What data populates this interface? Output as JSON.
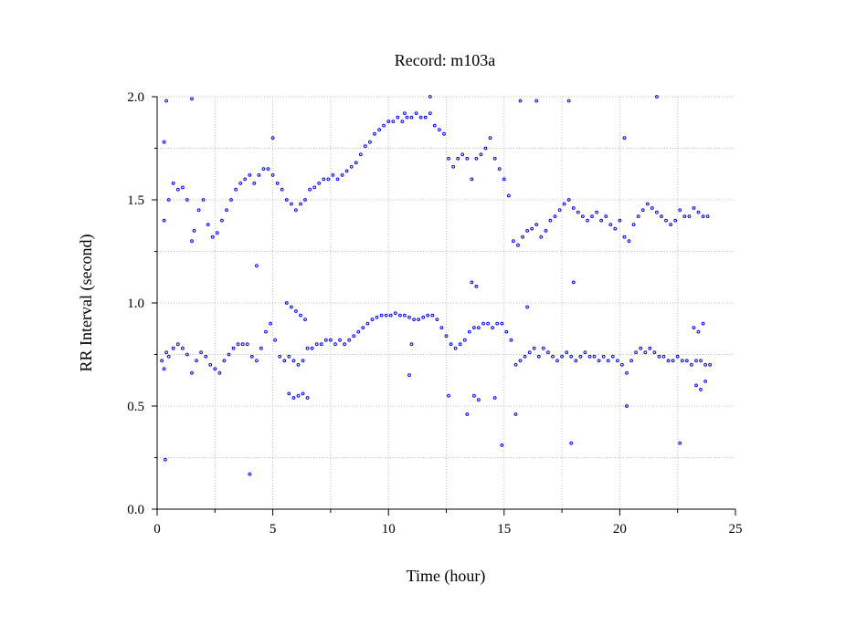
{
  "chart_data": {
    "type": "scatter",
    "title": "Record:  m103a",
    "xlabel": "Time (hour)",
    "ylabel": "RR Interval (second)",
    "xlim": [
      0,
      25
    ],
    "ylim": [
      0.0,
      2.0
    ],
    "xticks": [
      "0",
      "5",
      "10",
      "15",
      "20",
      "25"
    ],
    "yticks": [
      "0.0",
      "0.5",
      "1.0",
      "1.5",
      "2.0"
    ],
    "grid": true,
    "marker_color": "#0000ff",
    "marker": "open-circle",
    "series": [
      {
        "points": [
          [
            0.2,
            0.72
          ],
          [
            0.3,
            0.68
          ],
          [
            0.4,
            0.76
          ],
          [
            0.5,
            0.74
          ],
          [
            0.7,
            0.78
          ],
          [
            0.9,
            0.8
          ],
          [
            1.1,
            0.78
          ],
          [
            1.3,
            0.75
          ],
          [
            1.5,
            0.66
          ],
          [
            1.7,
            0.72
          ],
          [
            1.9,
            0.76
          ],
          [
            2.1,
            0.74
          ],
          [
            2.3,
            0.7
          ],
          [
            2.5,
            0.68
          ],
          [
            2.7,
            0.66
          ],
          [
            2.9,
            0.72
          ],
          [
            3.1,
            0.75
          ],
          [
            3.3,
            0.78
          ],
          [
            3.5,
            0.8
          ],
          [
            3.7,
            0.8
          ],
          [
            3.9,
            0.8
          ],
          [
            4.1,
            0.74
          ],
          [
            4.3,
            0.72
          ],
          [
            4.5,
            0.78
          ],
          [
            4.7,
            0.86
          ],
          [
            4.9,
            0.9
          ],
          [
            5.1,
            0.82
          ],
          [
            5.3,
            0.74
          ],
          [
            5.5,
            0.72
          ],
          [
            5.7,
            0.74
          ],
          [
            5.9,
            0.72
          ],
          [
            6.1,
            0.7
          ],
          [
            6.3,
            0.72
          ],
          [
            6.5,
            0.78
          ],
          [
            6.7,
            0.78
          ],
          [
            6.9,
            0.8
          ],
          [
            7.1,
            0.8
          ],
          [
            7.3,
            0.82
          ],
          [
            7.5,
            0.82
          ],
          [
            7.7,
            0.8
          ],
          [
            7.9,
            0.82
          ],
          [
            8.1,
            0.8
          ],
          [
            8.3,
            0.82
          ],
          [
            8.5,
            0.84
          ],
          [
            8.7,
            0.86
          ],
          [
            8.9,
            0.88
          ],
          [
            9.1,
            0.9
          ],
          [
            9.3,
            0.92
          ],
          [
            9.5,
            0.93
          ],
          [
            9.7,
            0.94
          ],
          [
            9.9,
            0.94
          ],
          [
            10.1,
            0.94
          ],
          [
            10.3,
            0.95
          ],
          [
            10.5,
            0.94
          ],
          [
            10.7,
            0.94
          ],
          [
            10.9,
            0.93
          ],
          [
            11.1,
            0.92
          ],
          [
            11.3,
            0.92
          ],
          [
            11.5,
            0.93
          ],
          [
            11.7,
            0.94
          ],
          [
            11.9,
            0.94
          ],
          [
            12.1,
            0.92
          ],
          [
            12.3,
            0.88
          ],
          [
            12.5,
            0.84
          ],
          [
            12.7,
            0.8
          ],
          [
            12.9,
            0.78
          ],
          [
            13.1,
            0.8
          ],
          [
            13.3,
            0.82
          ],
          [
            13.5,
            0.86
          ],
          [
            13.7,
            0.88
          ],
          [
            13.9,
            0.88
          ],
          [
            14.1,
            0.9
          ],
          [
            14.3,
            0.9
          ],
          [
            14.5,
            0.88
          ],
          [
            14.7,
            0.9
          ],
          [
            14.9,
            0.9
          ],
          [
            15.1,
            0.86
          ],
          [
            15.3,
            0.82
          ],
          [
            15.5,
            0.7
          ],
          [
            15.7,
            0.72
          ],
          [
            15.9,
            0.74
          ],
          [
            16.1,
            0.76
          ],
          [
            16.3,
            0.78
          ],
          [
            16.5,
            0.74
          ],
          [
            16.7,
            0.78
          ],
          [
            16.9,
            0.76
          ],
          [
            17.1,
            0.74
          ],
          [
            17.3,
            0.72
          ],
          [
            17.5,
            0.74
          ],
          [
            17.7,
            0.76
          ],
          [
            17.9,
            0.74
          ],
          [
            18.1,
            0.72
          ],
          [
            18.3,
            0.74
          ],
          [
            18.5,
            0.76
          ],
          [
            18.7,
            0.74
          ],
          [
            18.9,
            0.74
          ],
          [
            19.1,
            0.72
          ],
          [
            19.3,
            0.74
          ],
          [
            19.5,
            0.72
          ],
          [
            19.7,
            0.74
          ],
          [
            19.9,
            0.72
          ],
          [
            20.1,
            0.7
          ],
          [
            20.3,
            0.66
          ],
          [
            20.5,
            0.72
          ],
          [
            20.7,
            0.76
          ],
          [
            20.9,
            0.78
          ],
          [
            21.1,
            0.76
          ],
          [
            21.3,
            0.78
          ],
          [
            21.5,
            0.76
          ],
          [
            21.7,
            0.74
          ],
          [
            21.9,
            0.74
          ],
          [
            22.1,
            0.72
          ],
          [
            22.3,
            0.72
          ],
          [
            22.5,
            0.74
          ],
          [
            22.7,
            0.72
          ],
          [
            22.9,
            0.72
          ],
          [
            23.1,
            0.7
          ],
          [
            23.3,
            0.72
          ],
          [
            23.5,
            0.72
          ],
          [
            23.7,
            0.7
          ],
          [
            23.9,
            0.7
          ],
          [
            0.3,
            1.4
          ],
          [
            0.5,
            1.5
          ],
          [
            0.7,
            1.58
          ],
          [
            0.9,
            1.55
          ],
          [
            1.1,
            1.56
          ],
          [
            1.3,
            1.5
          ],
          [
            1.5,
            1.3
          ],
          [
            1.6,
            1.35
          ],
          [
            1.8,
            1.45
          ],
          [
            2.0,
            1.5
          ],
          [
            2.2,
            1.38
          ],
          [
            2.4,
            1.32
          ],
          [
            2.6,
            1.34
          ],
          [
            2.8,
            1.4
          ],
          [
            3.0,
            1.45
          ],
          [
            3.2,
            1.5
          ],
          [
            3.4,
            1.55
          ],
          [
            3.6,
            1.58
          ],
          [
            3.8,
            1.6
          ],
          [
            4.0,
            1.62
          ],
          [
            4.2,
            1.58
          ],
          [
            4.4,
            1.62
          ],
          [
            4.6,
            1.65
          ],
          [
            4.8,
            1.65
          ],
          [
            5.0,
            1.62
          ],
          [
            5.2,
            1.58
          ],
          [
            5.4,
            1.55
          ],
          [
            5.6,
            1.5
          ],
          [
            5.8,
            1.48
          ],
          [
            6.0,
            1.45
          ],
          [
            6.2,
            1.48
          ],
          [
            6.4,
            1.5
          ],
          [
            6.6,
            1.55
          ],
          [
            6.8,
            1.56
          ],
          [
            7.0,
            1.58
          ],
          [
            7.2,
            1.6
          ],
          [
            7.4,
            1.6
          ],
          [
            7.6,
            1.62
          ],
          [
            7.8,
            1.6
          ],
          [
            8.0,
            1.62
          ],
          [
            8.2,
            1.64
          ],
          [
            8.4,
            1.66
          ],
          [
            8.6,
            1.68
          ],
          [
            8.8,
            1.72
          ],
          [
            9.0,
            1.76
          ],
          [
            9.2,
            1.78
          ],
          [
            9.4,
            1.82
          ],
          [
            9.6,
            1.84
          ],
          [
            9.8,
            1.86
          ],
          [
            10.0,
            1.88
          ],
          [
            10.2,
            1.88
          ],
          [
            10.4,
            1.9
          ],
          [
            10.6,
            1.88
          ],
          [
            10.8,
            1.9
          ],
          [
            11.0,
            1.9
          ],
          [
            11.2,
            1.92
          ],
          [
            11.4,
            1.9
          ],
          [
            11.6,
            1.9
          ],
          [
            11.8,
            1.92
          ],
          [
            12.0,
            1.86
          ],
          [
            12.2,
            1.84
          ],
          [
            12.4,
            1.82
          ],
          [
            12.6,
            1.7
          ],
          [
            12.8,
            1.66
          ],
          [
            13.0,
            1.7
          ],
          [
            13.2,
            1.72
          ],
          [
            13.4,
            1.7
          ],
          [
            13.6,
            1.6
          ],
          [
            13.8,
            1.7
          ],
          [
            14.0,
            1.72
          ],
          [
            14.2,
            1.75
          ],
          [
            14.4,
            1.8
          ],
          [
            14.6,
            1.7
          ],
          [
            14.8,
            1.65
          ],
          [
            15.0,
            1.6
          ],
          [
            15.2,
            1.52
          ],
          [
            15.4,
            1.3
          ],
          [
            15.6,
            1.28
          ],
          [
            15.8,
            1.32
          ],
          [
            16.0,
            1.35
          ],
          [
            16.2,
            1.36
          ],
          [
            16.4,
            1.38
          ],
          [
            16.6,
            1.32
          ],
          [
            16.8,
            1.35
          ],
          [
            17.0,
            1.4
          ],
          [
            17.2,
            1.42
          ],
          [
            17.4,
            1.45
          ],
          [
            17.6,
            1.48
          ],
          [
            17.8,
            1.5
          ],
          [
            18.0,
            1.46
          ],
          [
            18.2,
            1.44
          ],
          [
            18.4,
            1.42
          ],
          [
            18.6,
            1.4
          ],
          [
            18.8,
            1.42
          ],
          [
            19.0,
            1.44
          ],
          [
            19.2,
            1.4
          ],
          [
            19.4,
            1.42
          ],
          [
            19.6,
            1.38
          ],
          [
            19.8,
            1.36
          ],
          [
            20.0,
            1.4
          ],
          [
            20.2,
            1.32
          ],
          [
            20.4,
            1.3
          ],
          [
            20.6,
            1.38
          ],
          [
            20.8,
            1.42
          ],
          [
            21.0,
            1.45
          ],
          [
            21.2,
            1.48
          ],
          [
            21.4,
            1.46
          ],
          [
            21.6,
            1.44
          ],
          [
            21.8,
            1.42
          ],
          [
            22.0,
            1.4
          ],
          [
            22.2,
            1.38
          ],
          [
            22.4,
            1.4
          ],
          [
            22.6,
            1.45
          ],
          [
            22.8,
            1.42
          ],
          [
            23.0,
            1.42
          ],
          [
            23.2,
            1.46
          ],
          [
            23.4,
            1.44
          ],
          [
            23.6,
            1.42
          ],
          [
            23.8,
            1.42
          ],
          [
            5.6,
            1.0
          ],
          [
            5.8,
            0.98
          ],
          [
            6.0,
            0.96
          ],
          [
            6.2,
            0.94
          ],
          [
            6.4,
            0.92
          ],
          [
            5.7,
            0.56
          ],
          [
            5.9,
            0.54
          ],
          [
            6.1,
            0.55
          ],
          [
            6.3,
            0.56
          ],
          [
            6.5,
            0.54
          ],
          [
            13.6,
            1.1
          ],
          [
            13.8,
            1.08
          ],
          [
            13.7,
            0.55
          ],
          [
            13.9,
            0.53
          ],
          [
            14.6,
            0.54
          ],
          [
            23.2,
            0.88
          ],
          [
            23.4,
            0.86
          ],
          [
            23.6,
            0.9
          ],
          [
            23.3,
            0.6
          ],
          [
            23.5,
            0.58
          ],
          [
            23.7,
            0.62
          ],
          [
            0.4,
            1.98
          ],
          [
            1.5,
            1.99
          ],
          [
            0.3,
            1.78
          ],
          [
            0.35,
            0.24
          ],
          [
            4.0,
            0.17
          ],
          [
            14.9,
            0.31
          ],
          [
            17.9,
            0.32
          ],
          [
            22.6,
            0.32
          ],
          [
            15.7,
            1.98
          ],
          [
            16.4,
            1.98
          ],
          [
            17.8,
            1.98
          ],
          [
            21.6,
            2.0
          ],
          [
            20.2,
            1.8
          ],
          [
            11.8,
            2.0
          ],
          [
            10.7,
            1.92
          ],
          [
            5.0,
            1.8
          ],
          [
            18.0,
            1.1
          ],
          [
            4.3,
            1.18
          ],
          [
            15.5,
            0.46
          ],
          [
            20.3,
            0.5
          ],
          [
            12.6,
            0.55
          ],
          [
            13.4,
            0.46
          ],
          [
            11.0,
            0.8
          ],
          [
            10.9,
            0.65
          ],
          [
            16.0,
            0.98
          ]
        ]
      }
    ]
  }
}
